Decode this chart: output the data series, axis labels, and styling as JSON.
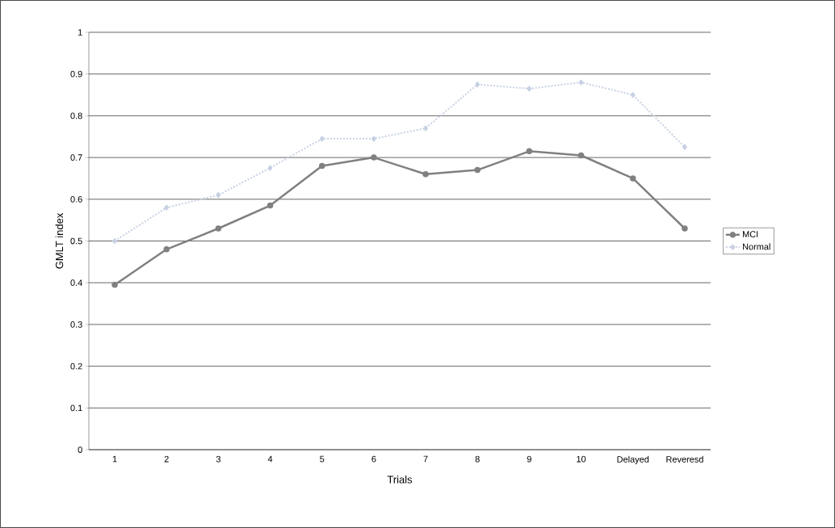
{
  "chart_data": {
    "type": "line",
    "xlabel": "Trials",
    "ylabel": "GMLT index",
    "categories": [
      "1",
      "2",
      "3",
      "4",
      "5",
      "6",
      "7",
      "8",
      "9",
      "10",
      "Delayed",
      "Reveresd"
    ],
    "series": [
      {
        "name": "MCI",
        "color": "#808080",
        "marker": "circle",
        "line_style": "solid",
        "values": [
          0.395,
          0.48,
          0.53,
          0.585,
          0.68,
          0.7,
          0.66,
          0.67,
          0.715,
          0.705,
          0.65,
          0.53
        ]
      },
      {
        "name": "Normal",
        "color": "#c8d0e4",
        "marker": "diamond",
        "line_style": "dotted",
        "values": [
          0.5,
          0.58,
          0.61,
          0.675,
          0.745,
          0.745,
          0.77,
          0.875,
          0.865,
          0.88,
          0.85,
          0.725
        ]
      }
    ],
    "ylim": [
      0,
      1
    ],
    "yticks": [
      0,
      0.1,
      0.2,
      0.3,
      0.4,
      0.5,
      0.6,
      0.7,
      0.8,
      0.9,
      1
    ],
    "grid": "y",
    "legend": "right"
  }
}
